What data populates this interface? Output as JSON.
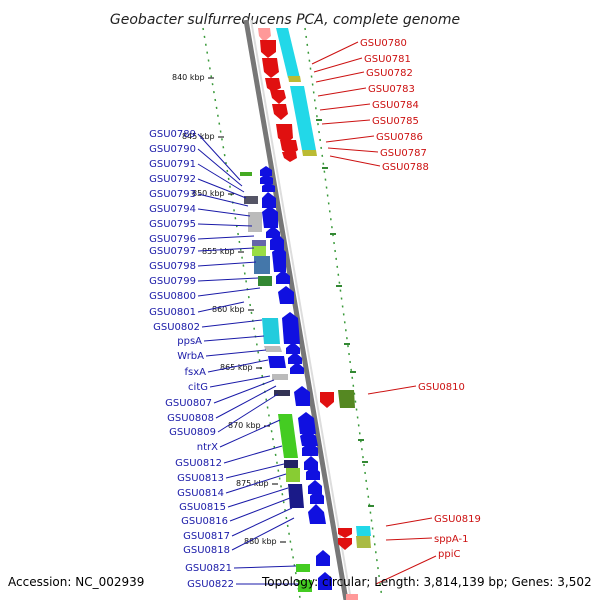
{
  "title": "Geobacter sulfurreducens PCA, complete genome",
  "footer": {
    "accession": "Accession: NC_002939",
    "topology": "Topology: circular; Length: 3,814,139 bp; Genes: 3,502"
  },
  "kbp_ticks": [
    "840 kbp",
    "845 kbp",
    "850 kbp",
    "855 kbp",
    "860 kbp",
    "865 kbp",
    "870 kbp",
    "875 kbp",
    "880 kbp"
  ],
  "left_labels": [
    "GSU0789",
    "GSU0790",
    "GSU0791",
    "GSU0792",
    "GSU0793",
    "GSU0794",
    "GSU0795",
    "GSU0796",
    "GSU0797",
    "GSU0798",
    "GSU0799",
    "GSU0800",
    "GSU0801",
    "GSU0802",
    "ppsA",
    "WrbA",
    "fsxA",
    "citG",
    "GSU0807",
    "GSU0808",
    "GSU0809",
    "ntrX",
    "GSU0812",
    "GSU0813",
    "GSU0814",
    "GSU0815",
    "GSU0816",
    "GSU0817",
    "GSU0818",
    "GSU0821",
    "GSU0822"
  ],
  "right_labels": [
    "GSU0780",
    "GSU0781",
    "GSU0782",
    "GSU0783",
    "GSU0784",
    "GSU0785",
    "GSU0786",
    "GSU0787",
    "GSU0788",
    "GSU0810",
    "GSU0819",
    "sppA-1",
    "ppiC"
  ],
  "colors": {
    "forward_gene": "#e01010",
    "reverse_gene": "#1010e0",
    "cyan": "#22d8e8",
    "green": "#44cc22",
    "backbone": "#999999"
  }
}
